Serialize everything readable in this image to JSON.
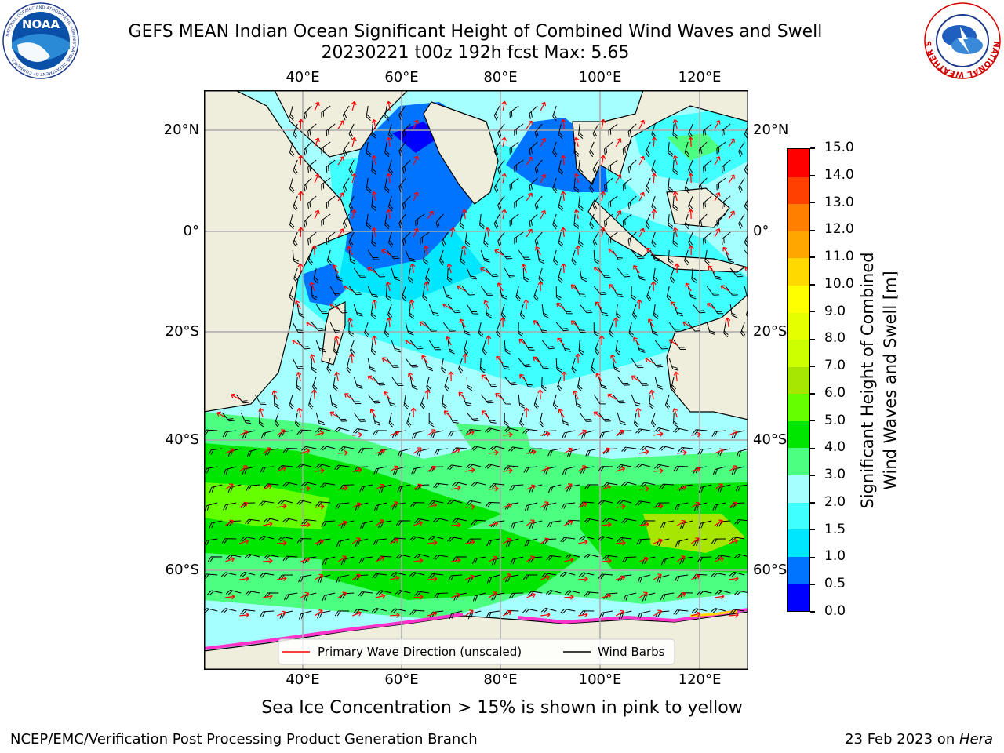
{
  "header": {
    "title_line1": "GEFS MEAN Indian Ocean Significant Height of Combined Wind Waves and Swell",
    "title_line2": "20230221 t00z 192h fcst   Max: 5.65",
    "left_logo": {
      "text": "NOAA",
      "ring_text": "NATIONAL OCEANIC AND ATMOSPHERIC ADMINISTRATION",
      "ring_text_bottom": "U.S. DEPARTMENT OF COMMERCE"
    },
    "right_logo": {
      "ring_text": "NATIONAL WEATHER SERVICE"
    }
  },
  "map": {
    "lon_ticks": [
      "40°E",
      "60°E",
      "80°E",
      "100°E",
      "120°E"
    ],
    "lat_ticks_left": [
      "20°N",
      "0°",
      "20°S",
      "40°S",
      "60°S"
    ],
    "lat_ticks_right": [
      "20°N",
      "0°",
      "20°S",
      "40°S",
      "60°S"
    ],
    "legend": {
      "wave_label": "Primary Wave Direction (unscaled)",
      "wind_label": "Wind Barbs"
    },
    "colors": {
      "land": "#efeddc",
      "sea_ice": "#ff33cc",
      "arrow": "#ff0000",
      "barb": "#000000"
    }
  },
  "colorbar": {
    "label_line1": "Significant Height of Combined",
    "label_line2": "Wind Waves and Swell [m]",
    "ticks": [
      "0.0",
      "0.5",
      "1.0",
      "1.5",
      "2.0",
      "3.0",
      "4.0",
      "5.0",
      "6.0",
      "7.0",
      "8.0",
      "9.0",
      "10.0",
      "11.0",
      "12.0",
      "13.0",
      "14.0",
      "15.0"
    ],
    "colors": [
      "#0000ff",
      "#0073ff",
      "#00e6ff",
      "#40ffff",
      "#a6ffff",
      "#4dff80",
      "#00e600",
      "#66ff00",
      "#a6e600",
      "#ccff00",
      "#e6ff00",
      "#ffff00",
      "#ffd900",
      "#ffa600",
      "#ff8000",
      "#ff4000",
      "#ff0000"
    ]
  },
  "footer": {
    "note": "Sea Ice Concentration > 15% is shown in pink to yellow",
    "left": "NCEP/EMC/Verification Post Processing Product Generation Branch",
    "right_prefix": "23 Feb 2023 on ",
    "right_host": "Hera"
  }
}
